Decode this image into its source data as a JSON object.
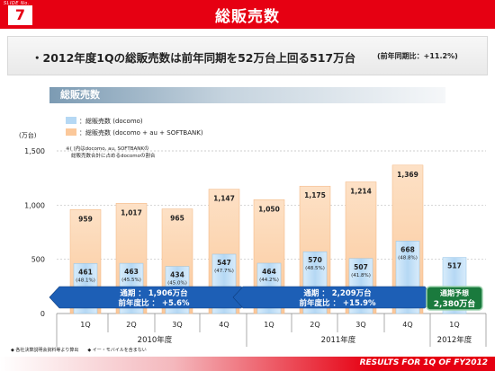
{
  "header": {
    "slide_no_label": "SLIDE No.",
    "slide_no": "7",
    "title": "総販売数"
  },
  "banner": {
    "main": "・2012年度1Qの総販売数は前年同期を52万台上回る517万台",
    "note": "(前年同期比：+11.2%)"
  },
  "section_label": "総販売数",
  "footer": {
    "text": "RESULTS FOR 1Q OF FY2012",
    "notes": [
      "◆ 各社決算説明会資料等より算出",
      "◆ イー・モバイルを含まない"
    ]
  },
  "colors": {
    "docomo": "#b5d8f4",
    "total": "#fbc89a",
    "brand_red": "#e60012",
    "blue_arrow": "#1d5fb6",
    "green_box": "#1a7a3d"
  },
  "chart_data": {
    "type": "bar",
    "ylabel": "(万台)",
    "yticks": [
      "0",
      "500",
      "1,000",
      "1,500"
    ],
    "ylim": [
      0,
      1500
    ],
    "categories": [
      "1Q",
      "2Q",
      "3Q",
      "4Q",
      "1Q",
      "2Q",
      "3Q",
      "4Q",
      "1Q"
    ],
    "year_groups": [
      {
        "label": "2010年度",
        "start": 0,
        "end": 3
      },
      {
        "label": "2011年度",
        "start": 4,
        "end": 7
      },
      {
        "label": "2012年度",
        "start": 8,
        "end": 8
      }
    ],
    "series": [
      {
        "name": "：総販売数 (docomo + au + SOFTBANK)",
        "values": [
          959,
          1017,
          965,
          1147,
          1050,
          1175,
          1214,
          1369,
          null
        ],
        "labels": [
          "959",
          "1,017",
          "965",
          "1,147",
          "1,050",
          "1,175",
          "1,214",
          "1,369",
          ""
        ]
      },
      {
        "name": "：総販売数 (docomo)",
        "values": [
          461,
          463,
          434,
          547,
          464,
          570,
          507,
          668,
          517
        ],
        "labels": [
          "461",
          "463",
          "434",
          "547",
          "464",
          "570",
          "507",
          "668",
          "517"
        ],
        "shares": [
          "(48.1%)",
          "(45.5%)",
          "(45.0%)",
          "(47.7%)",
          "(44.2%)",
          "(48.5%)",
          "(41.8%)",
          "(48.8%)",
          ""
        ]
      }
    ],
    "annotation": [
      "※( )内はdocomo, au, SOFTBANKの",
      "総販売数合計に占めるdocomoの割合"
    ],
    "summaries": [
      {
        "line1": "通期 ： 1,906万台",
        "line2": "前年度比 ： +5.6%",
        "start": 0,
        "end": 3
      },
      {
        "line1": "通期 ： 2,209万台",
        "line2": "前年度比 ： +15.9%",
        "start": 4,
        "end": 7
      }
    ],
    "forecast": {
      "line1": "通期予想",
      "line2": "2,380万台",
      "index": 8
    }
  }
}
